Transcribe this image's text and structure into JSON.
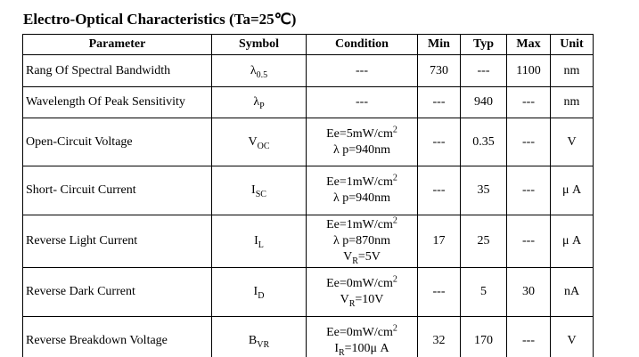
{
  "title": "Electro-Optical Characteristics (Ta=25℃)",
  "table": {
    "header": [
      "Parameter",
      "Symbol",
      "Condition",
      "Min",
      "Typ",
      "Max",
      "Unit"
    ],
    "rows": [
      {
        "parameter": "Rang Of Spectral Bandwidth",
        "symbol": [
          "λ",
          {
            "sub": "0.5"
          }
        ],
        "condition": [
          [
            "---"
          ]
        ],
        "min": "730",
        "typ": "---",
        "max": "1100",
        "unit": "nm"
      },
      {
        "parameter": "Wavelength Of Peak Sensitivity",
        "symbol": [
          "λ",
          {
            "sub": "P"
          }
        ],
        "condition": [
          [
            "---"
          ]
        ],
        "min": "---",
        "typ": "940",
        "max": "---",
        "unit": "nm"
      },
      {
        "parameter": "Open-Circuit Voltage",
        "symbol": [
          "V",
          {
            "sub": "OC"
          }
        ],
        "condition": [
          [
            "Ee=5mW/cm",
            {
              "sup": "2"
            }
          ],
          [
            "λ p=940nm"
          ]
        ],
        "min": "---",
        "typ": "0.35",
        "max": "---",
        "unit": "V"
      },
      {
        "parameter": "Short- Circuit Current",
        "symbol": [
          "I",
          {
            "sub": "SC"
          }
        ],
        "condition": [
          [
            "Ee=1mW/cm",
            {
              "sup": "2"
            }
          ],
          [
            "λ p=940nm"
          ]
        ],
        "min": "---",
        "typ": "35",
        "max": "---",
        "unit": "μ A"
      },
      {
        "parameter": "Reverse Light Current",
        "symbol": [
          "I",
          {
            "sub": "L"
          }
        ],
        "condition": [
          [
            "Ee=1mW/cm",
            {
              "sup": "2"
            }
          ],
          [
            "λ p=870nm"
          ],
          [
            "V",
            {
              "sub": "R"
            },
            "=5V"
          ]
        ],
        "min": "17",
        "typ": "25",
        "max": "---",
        "unit": "μ A"
      },
      {
        "parameter": "Reverse Dark Current",
        "symbol": [
          "I",
          {
            "sub": "D"
          }
        ],
        "condition": [
          [
            "Ee=0mW/cm",
            {
              "sup": "2"
            }
          ],
          [
            "V",
            {
              "sub": "R"
            },
            "=10V"
          ]
        ],
        "min": "---",
        "typ": "5",
        "max": "30",
        "unit": "nA"
      },
      {
        "parameter": "Reverse Breakdown Voltage",
        "symbol": [
          "B",
          {
            "sub": "VR"
          }
        ],
        "condition": [
          [
            "Ee=0mW/cm",
            {
              "sup": "2"
            }
          ],
          [
            "I",
            {
              "sub": "R"
            },
            "=100μ A"
          ]
        ],
        "min": "32",
        "typ": "170",
        "max": "---",
        "unit": "V"
      }
    ]
  }
}
